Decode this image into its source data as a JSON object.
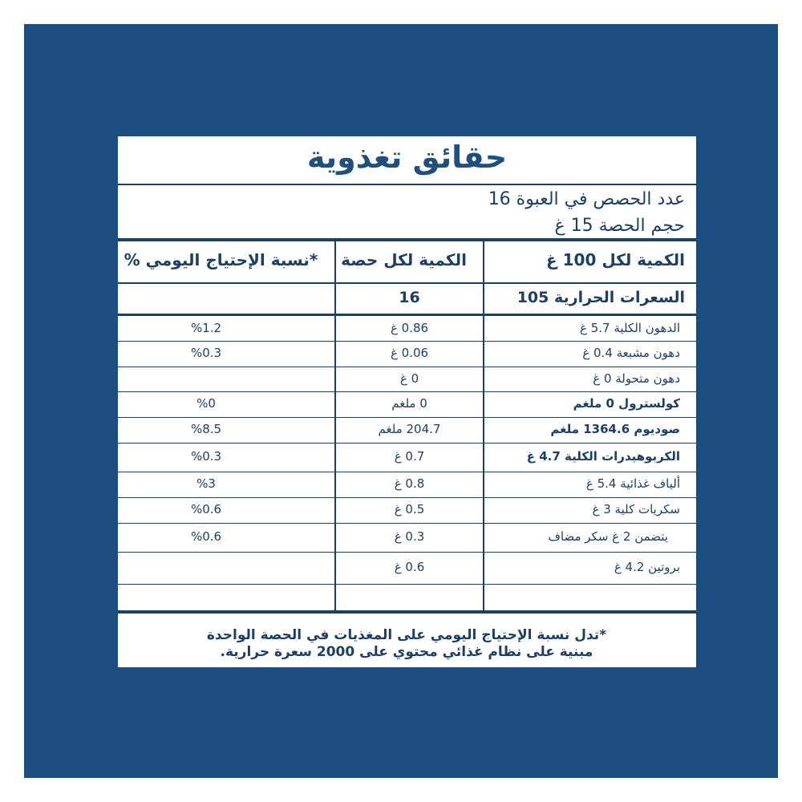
{
  "title": "حقائق تغذوية",
  "servings": {
    "per_pack": "عدد الحصص في العبوة 16",
    "serving_size": "حجم الحصة  15 غ"
  },
  "table": {
    "headers": [
      "الكمية لكل 100 غ",
      "الكمية لكل حصة",
      "*نسبة الإحتياج اليومي %"
    ],
    "calories": {
      "per_100g": "السعرات الحرارية 105",
      "per_serving": "16"
    },
    "rows": [
      {
        "nutrient": "الدهون الكلية 5.7 غ",
        "per_serving": "0.86 غ",
        "daily_value": "%1.2"
      },
      {
        "nutrient": "دهون مشبعة 0.4 غ",
        "per_serving": "0.06 غ",
        "daily_value": "%0.3"
      },
      {
        "nutrient": "دهون متحولة 0 غ",
        "per_serving": "0 غ"
      },
      {
        "nutrient": "كولسترول 0 ملغم",
        "per_serving": "0 ملغم",
        "daily_value": "%0"
      },
      {
        "nutrient": "صوديوم 1364.6 ملغم",
        "per_serving": "204.7 ملغم",
        "daily_value": "%8.5"
      },
      {
        "nutrient": "الكربوهيدرات الكلية 4.7 غ",
        "per_serving": "0.7 غ",
        "daily_value": "%0.3"
      },
      {
        "nutrient": "ألياف غذائية 5.4 غ",
        "per_serving": "0.8 غ",
        "daily_value": "%3"
      },
      {
        "nutrient": "سكريات كلية 3 غ",
        "per_serving": "0.5 غ",
        "daily_value": "%0.6"
      },
      {
        "nutrient": "يتضمن 2 غ سكر مضاف",
        "per_serving": "0.3 غ",
        "daily_value": "%0.6"
      },
      {
        "nutrient": "بروتين 4.2 غ",
        "per_serving": "0.6 غ"
      }
    ]
  },
  "footnote": "*تدل نسبة الإحتياج اليومي على المغذيات في الحصة الواحدة مبنية على نظام غذائي محتوي على 2000 سعرة حرارية."
}
